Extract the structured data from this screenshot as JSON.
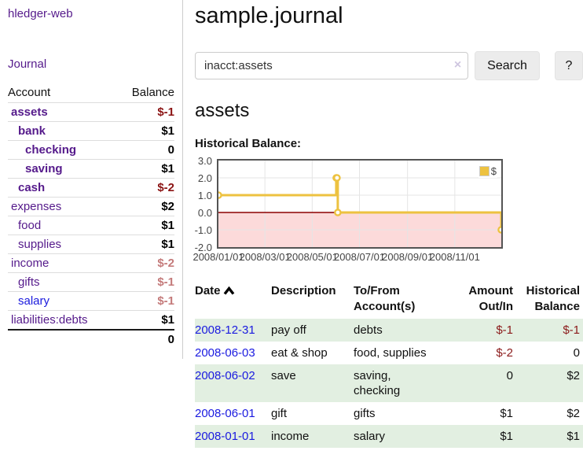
{
  "colors": {
    "accent_purple": "#551a8b",
    "link_blue": "#1a1add",
    "negative_strong": "#8b1313",
    "negative_muted": "#c47a7a",
    "row_stripe_green": "#e2efe1",
    "chart_series_yellow": "#edc240",
    "chart_negative_fill": "#fcdada",
    "chart_zero_line": "#8b0000",
    "chart_grid": "#e5e5e5",
    "chart_border": "#545454"
  },
  "sidebar": {
    "app_title": "hledger-web",
    "journal_label": "Journal",
    "accounts": {
      "header_account": "Account",
      "header_balance": "Balance",
      "rows": [
        {
          "name": "assets",
          "balance": "$-1",
          "indent": 0,
          "bold": true,
          "neg": "strong",
          "link_color": "purple"
        },
        {
          "name": "bank",
          "balance": "$1",
          "indent": 1,
          "bold": true,
          "neg": "none",
          "link_color": "purple"
        },
        {
          "name": "checking",
          "balance": "0",
          "indent": 2,
          "bold": true,
          "neg": "none",
          "link_color": "purple"
        },
        {
          "name": "saving",
          "balance": "$1",
          "indent": 2,
          "bold": true,
          "neg": "none",
          "link_color": "purple"
        },
        {
          "name": "cash",
          "balance": "$-2",
          "indent": 1,
          "bold": true,
          "neg": "strong",
          "link_color": "purple"
        },
        {
          "name": "expenses",
          "balance": "$2",
          "indent": 0,
          "bold": false,
          "neg": "none",
          "link_color": "purple"
        },
        {
          "name": "food",
          "balance": "$1",
          "indent": 1,
          "bold": false,
          "neg": "none",
          "link_color": "purple"
        },
        {
          "name": "supplies",
          "balance": "$1",
          "indent": 1,
          "bold": false,
          "neg": "none",
          "link_color": "purple"
        },
        {
          "name": "income",
          "balance": "$-2",
          "indent": 0,
          "bold": false,
          "neg": "muted",
          "link_color": "purple"
        },
        {
          "name": "gifts",
          "balance": "$-1",
          "indent": 1,
          "bold": false,
          "neg": "muted",
          "link_color": "purple"
        },
        {
          "name": "salary",
          "balance": "$-1",
          "indent": 1,
          "bold": false,
          "neg": "muted",
          "link_color": "blue"
        },
        {
          "name": "liabilities:debts",
          "balance": "$1",
          "indent": 0,
          "bold": false,
          "neg": "none",
          "link_color": "purple"
        }
      ],
      "total": "0"
    }
  },
  "main": {
    "title": "sample.journal",
    "search": {
      "value": "inacct:assets",
      "clear_icon": "×",
      "button_label": "Search",
      "help_label": "?"
    },
    "account_heading": "assets",
    "chart_label": "Historical Balance:"
  },
  "chart_data": {
    "type": "line",
    "step": true,
    "title": "Historical Balance",
    "legend": "$",
    "legend_position": "top-right",
    "grid": true,
    "x_range": [
      "2008-01-01",
      "2008-12-31"
    ],
    "ylim": [
      -2.0,
      3.0
    ],
    "y_ticks": [
      3.0,
      2.0,
      1.0,
      0.0,
      -1.0,
      -2.0
    ],
    "x_ticks": [
      "2008/01/01",
      "2008/03/01",
      "2008/05/01",
      "2008/07/01",
      "2008/09/01",
      "2008/11/01"
    ],
    "series": [
      {
        "name": "$",
        "color": "#edc240",
        "points": [
          {
            "date": "2008-01-01",
            "value": 1
          },
          {
            "date": "2008-06-01",
            "value": 2
          },
          {
            "date": "2008-06-02",
            "value": 2
          },
          {
            "date": "2008-06-03",
            "value": 0
          },
          {
            "date": "2008-12-31",
            "value": -1
          }
        ]
      }
    ]
  },
  "register": {
    "headers": {
      "date": "Date",
      "description": "Description",
      "tofrom": "To/From Account(s)",
      "amount": "Amount Out/In",
      "balance": "Historical Balance"
    },
    "rows": [
      {
        "date": "2008-12-31",
        "description": "pay off",
        "accounts": "debts",
        "amount": "$-1",
        "amount_neg": true,
        "balance": "$-1",
        "balance_neg": true,
        "shaded": true
      },
      {
        "date": "2008-06-03",
        "description": "eat & shop",
        "accounts": "food, supplies",
        "amount": "$-2",
        "amount_neg": true,
        "balance": "0",
        "balance_neg": false,
        "shaded": false
      },
      {
        "date": "2008-06-02",
        "description": "save",
        "accounts": "saving, checking",
        "amount": "0",
        "amount_neg": false,
        "balance": "$2",
        "balance_neg": false,
        "shaded": true
      },
      {
        "date": "2008-06-01",
        "description": "gift",
        "accounts": "gifts",
        "amount": "$1",
        "amount_neg": false,
        "balance": "$2",
        "balance_neg": false,
        "shaded": false
      },
      {
        "date": "2008-01-01",
        "description": "income",
        "accounts": "salary",
        "amount": "$1",
        "amount_neg": false,
        "balance": "$1",
        "balance_neg": false,
        "shaded": true
      }
    ]
  }
}
